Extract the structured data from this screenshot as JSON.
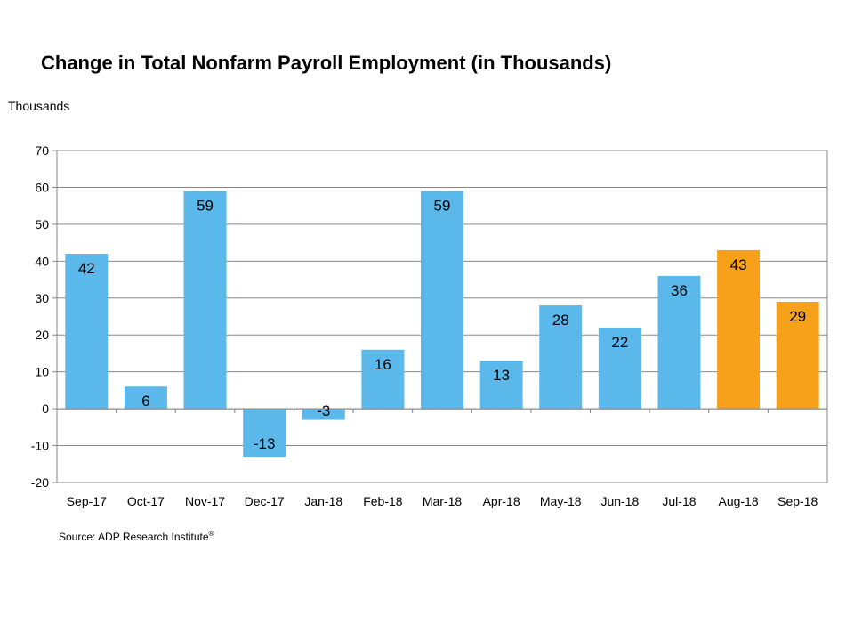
{
  "chart_data": {
    "type": "bar",
    "title": "Change in Total Nonfarm Payroll Employment (in Thousands)",
    "ylabel": "Thousands",
    "xlabel": "",
    "categories": [
      "Sep-17",
      "Oct-17",
      "Nov-17",
      "Dec-17",
      "Jan-18",
      "Feb-18",
      "Mar-18",
      "Apr-18",
      "May-18",
      "Jun-18",
      "Jul-18",
      "Aug-18",
      "Sep-18"
    ],
    "values": [
      42,
      6,
      59,
      -13,
      -3,
      16,
      59,
      13,
      28,
      22,
      36,
      43,
      29
    ],
    "data_labels": [
      "42",
      "6",
      "59",
      "-13",
      "-3",
      "16",
      "59",
      "13",
      "28",
      "22",
      "36",
      "43",
      "29"
    ],
    "ylim": [
      -20,
      70
    ],
    "yticks": [
      -20,
      -10,
      0,
      10,
      20,
      30,
      40,
      50,
      60,
      70
    ],
    "ytick_labels": [
      "-20",
      "-10",
      "0",
      "10",
      "20",
      "30",
      "40",
      "50",
      "60",
      "70"
    ],
    "grid": true,
    "colors": {
      "default_bar": "#5bb8ea",
      "highlight_bar": "#f7a11a",
      "grid": "#888888",
      "border": "#888888"
    },
    "highlighted_categories": [
      "Aug-18",
      "Sep-18"
    ]
  },
  "source": {
    "text": "Source: ADP Research Institute",
    "mark": "®"
  }
}
